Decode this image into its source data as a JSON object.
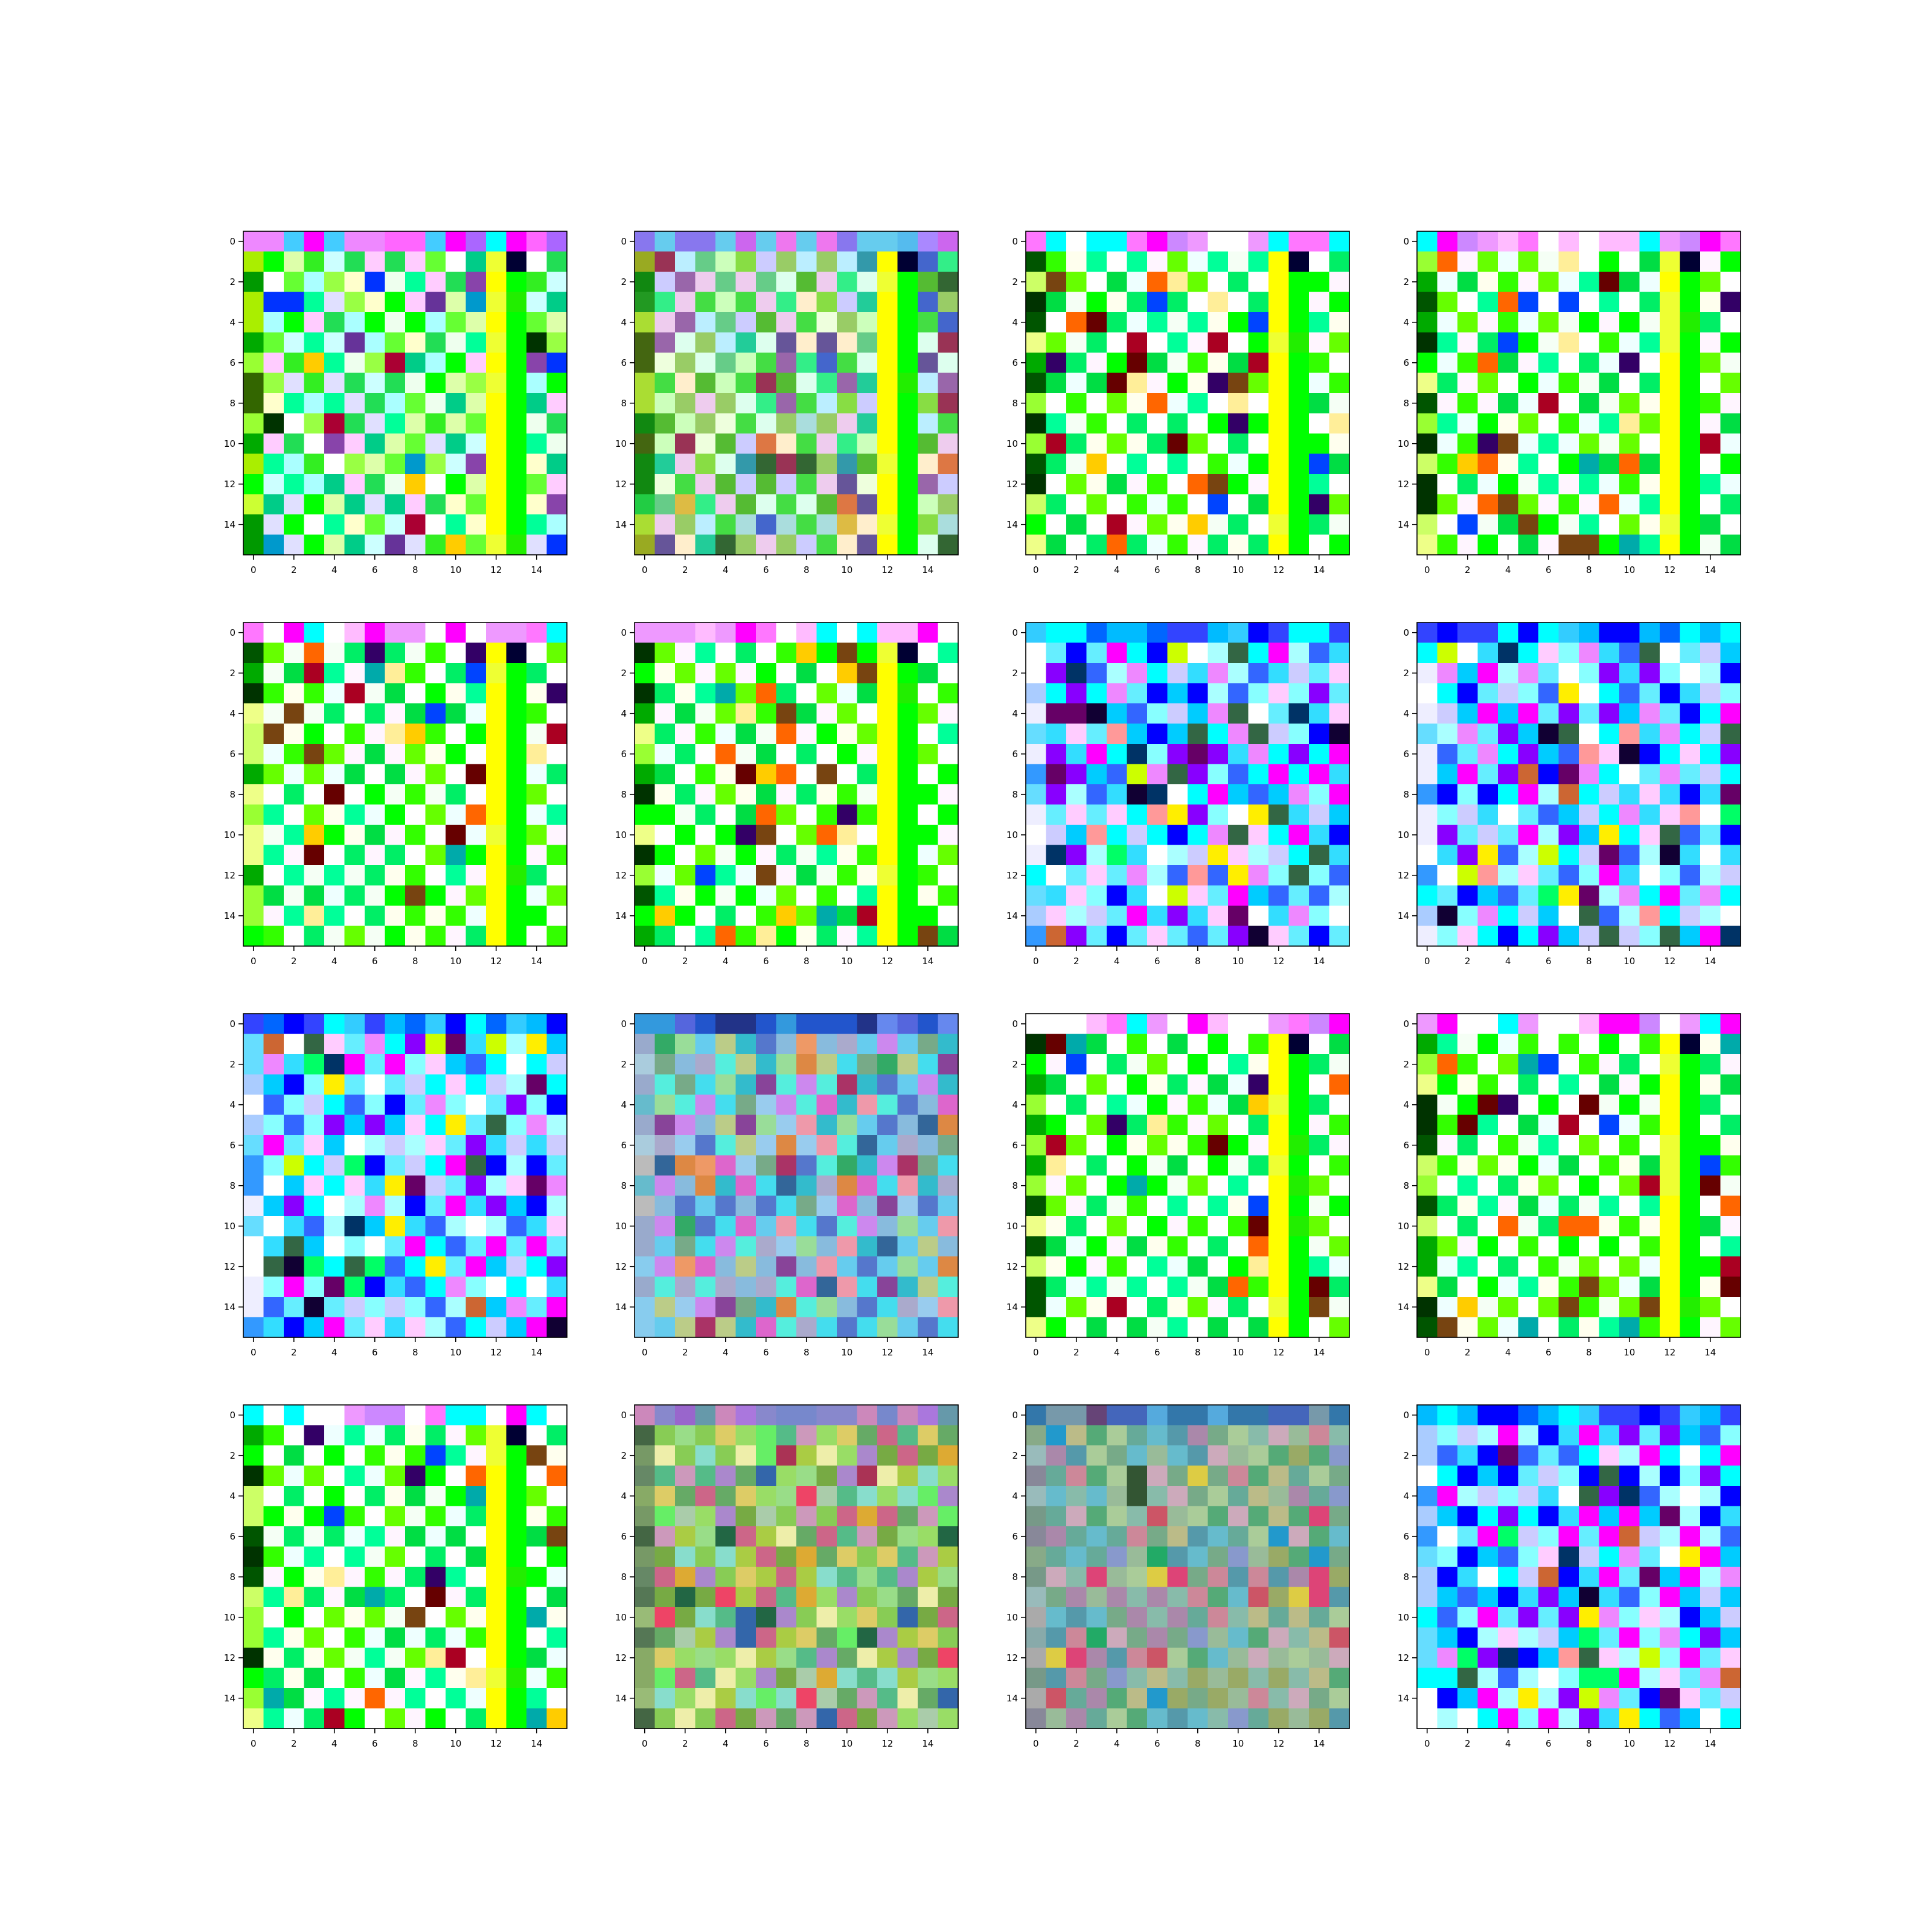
{
  "figure": {
    "layout": "4x4 grid of image panels",
    "background": "#ffffff",
    "axes_color": "#000000"
  },
  "chart_data": {
    "type": "heatmap",
    "description": "16 RGB images, each a 16 by 16 grid of colored pixels, shown with matplotlib imshow axes",
    "rows": 16,
    "cols": 16,
    "xticks": [
      0,
      2,
      4,
      6,
      8,
      10,
      12,
      14
    ],
    "yticks": [
      0,
      2,
      4,
      6,
      8,
      10,
      12,
      14
    ],
    "xlim": [
      -0.5,
      15.5
    ],
    "ylim": [
      15.5,
      -0.5
    ],
    "grid": false,
    "legend": "none",
    "panel_styles": [
      "checker-green",
      "checker-green-muted",
      "checker-white",
      "checker-white",
      "checker-white",
      "checker-white",
      "cyan-purple",
      "cyan-purple",
      "cyan-purple",
      "pastel-mix",
      "checker-white",
      "checker-white",
      "checker-white",
      "olive-mix",
      "muted-mix",
      "cyan-purple"
    ],
    "palettes": {
      "checker-green": {
        "even_cells": [
          "#00ff00",
          "#22dd55",
          "#00cc88",
          "#66ff33",
          "#99ff44",
          "#00ff99",
          "#33ee22"
        ],
        "odd_cells": [
          "#ffffff",
          "#ccffff",
          "#eeffee",
          "#ffccff",
          "#ddffaa",
          "#aaffff",
          "#ffffcc",
          "#e0e0ff"
        ],
        "top_row": [
          "#00ffff",
          "#66ffee",
          "#ff00ff",
          "#ee88ff",
          "#ff66ff",
          "#aa66ff",
          "#44ccff"
        ],
        "left_col": [
          "#00ff00",
          "#99ff33",
          "#009900",
          "#ccff33",
          "#00aa00",
          "#336600",
          "#aaee00"
        ],
        "accents": [
          "#0033ff",
          "#aa0033",
          "#ff6600",
          "#ffcc00",
          "#8844aa",
          "#003300",
          "#663399",
          "#0099cc"
        ]
      },
      "checker-green-muted": {
        "even_cells": [
          "#44dd44",
          "#66cc88",
          "#22cc99",
          "#88dd44",
          "#99cc66",
          "#33ee88",
          "#55bb33"
        ],
        "odd_cells": [
          "#ddffee",
          "#bbeeff",
          "#eeffdd",
          "#eeccee",
          "#ccffbb",
          "#aadddd",
          "#ffeecc",
          "#ccccff"
        ],
        "top_row": [
          "#44ddff",
          "#66ccee",
          "#cc66ee",
          "#aa88ff",
          "#ee77ee",
          "#8877ee",
          "#55bbee"
        ],
        "left_col": [
          "#22cc44",
          "#88dd33",
          "#118811",
          "#aadd33",
          "#229922",
          "#446611",
          "#99aa22"
        ],
        "accents": [
          "#4466cc",
          "#993355",
          "#dd7744",
          "#ddbb44",
          "#9966aa",
          "#336633",
          "#665599",
          "#3399aa"
        ]
      },
      "checker-white": {
        "even_cells": [
          "#00ff00",
          "#00ee66",
          "#00ff99",
          "#33ff00",
          "#00dd44",
          "#66ff00"
        ],
        "odd_cells": [
          "#ffffff",
          "#ffffff",
          "#f5fff5",
          "#ffffee",
          "#eeffff",
          "#ffffff",
          "#fff5ff"
        ],
        "top_row": [
          "#00ffff",
          "#ff00ff",
          "#ee99ff",
          "#ff77ff",
          "#cc88ff",
          "#ffbbff",
          "#ffffff"
        ],
        "left_col": [
          "#00ff00",
          "#ccff66",
          "#00aa00",
          "#eeff88",
          "#003300",
          "#99ff33",
          "#005500"
        ],
        "accents": [
          "#0044ff",
          "#aa0022",
          "#ff6600",
          "#ffcc00",
          "#774411",
          "#660000",
          "#330066",
          "#00aaaa",
          "#ffee99"
        ]
      },
      "cyan-purple": {
        "even_cells": [
          "#00ffff",
          "#33ddff",
          "#66eeff",
          "#00ccff",
          "#88ffff",
          "#aaffff"
        ],
        "odd_cells": [
          "#ffffff",
          "#0000ff",
          "#ff00ff",
          "#8800ff",
          "#ee88ff",
          "#ccccff",
          "#ffccff",
          "#3366ff"
        ],
        "top_row": [
          "#00ffff",
          "#33ccff",
          "#0066ff",
          "#0000ff",
          "#00bbff",
          "#3344ff"
        ],
        "left_col": [
          "#00ffff",
          "#ffffff",
          "#3399ff",
          "#eeeeff",
          "#66ddff",
          "#aaccff"
        ],
        "accents": [
          "#ffee00",
          "#ff9999",
          "#00ff66",
          "#ccff00",
          "#110033",
          "#660066",
          "#336644",
          "#cc6633",
          "#003366"
        ]
      },
      "pastel-mix": {
        "even_cells": [
          "#66ccee",
          "#44ddee",
          "#88bbdd",
          "#55eedd",
          "#99ccee",
          "#33bbcc"
        ],
        "odd_cells": [
          "#cc88ee",
          "#aaaacc",
          "#77aa88",
          "#ee99aa",
          "#bbcc88",
          "#5577cc",
          "#dd66cc",
          "#99dd99"
        ],
        "top_row": [
          "#6688ee",
          "#4466ee",
          "#2255cc",
          "#3399dd",
          "#5566dd",
          "#223388"
        ],
        "left_col": [
          "#5599ee",
          "#88ccee",
          "#aaccdd",
          "#66bbcc",
          "#99aacc",
          "#bbbbbb"
        ],
        "accents": [
          "#ee9966",
          "#aa3366",
          "#336699",
          "#dd8844",
          "#884499",
          "#33aa66"
        ]
      },
      "olive-mix": {
        "even_cells": [
          "#88cc55",
          "#66aa66",
          "#aacc44",
          "#55bb88",
          "#99dd66",
          "#77aa44"
        ],
        "odd_cells": [
          "#cc99bb",
          "#aaccaa",
          "#ddcc66",
          "#99dd88",
          "#cc6688",
          "#aa88cc",
          "#88ddcc",
          "#eeeeaa"
        ],
        "top_row": [
          "#6699aa",
          "#7788cc",
          "#9966cc",
          "#aa77dd",
          "#cc88bb",
          "#8888cc"
        ],
        "left_col": [
          "#668866",
          "#88aa66",
          "#557755",
          "#99bb77",
          "#446644",
          "#779966"
        ],
        "accents": [
          "#ee4466",
          "#226644",
          "#ddaa33",
          "#3366aa",
          "#aa3355",
          "#66ee66"
        ]
      },
      "muted-mix": {
        "even_cells": [
          "#66aa99",
          "#88bbaa",
          "#5599aa",
          "#77aa88",
          "#99bb99",
          "#55aa77"
        ],
        "odd_cells": [
          "#aa88aa",
          "#ccaabb",
          "#8899cc",
          "#bbbb88",
          "#99aa66",
          "#cc8899",
          "#66bbcc",
          "#aacc99"
        ],
        "top_row": [
          "#7799aa",
          "#5588cc",
          "#4466bb",
          "#55aadd",
          "#3377aa",
          "#664477"
        ],
        "left_col": [
          "#88aaaa",
          "#99bbbb",
          "#779988",
          "#aaaaaa",
          "#888899",
          "#88aa88"
        ],
        "accents": [
          "#dd4477",
          "#335533",
          "#ddcc44",
          "#22aa66",
          "#cc5566",
          "#2299cc"
        ]
      }
    }
  }
}
